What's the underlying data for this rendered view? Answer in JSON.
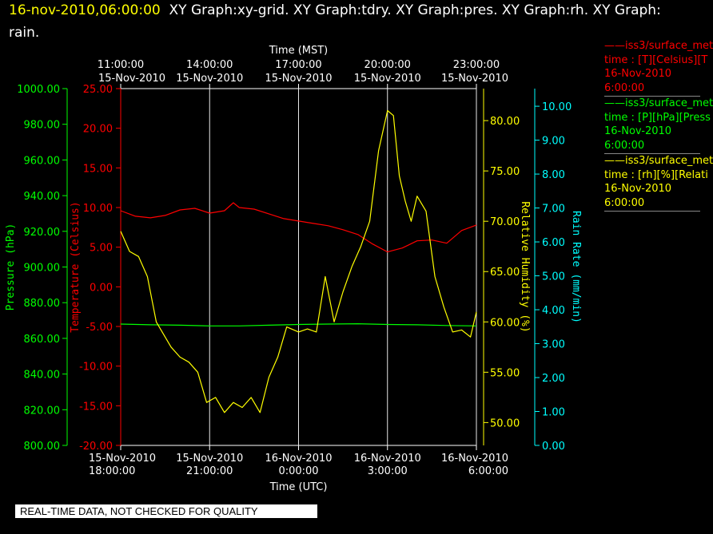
{
  "header": {
    "date": "16-nov-2010,06:00:00",
    "graphs_line1": "XY Graph:xy-grid.  XY Graph:tdry.  XY Graph:pres.  XY Graph:rh.  XY Graph:",
    "graphs_line2": "rain."
  },
  "notice": "REAL-TIME DATA, NOT CHECKED FOR QUALITY",
  "legend": [
    {
      "line1": "——iss3/surface_met",
      "line2": "time : [T][Celsius][T",
      "line3": "16-Nov-2010",
      "line4": "6:00:00",
      "color": "#ff0000"
    },
    {
      "line1": "——iss3/surface_met",
      "line2": "time : [P][hPa][Press",
      "line3": "16-Nov-2010",
      "line4": "6:00:00",
      "color": "#00ff00"
    },
    {
      "line1": "——iss3/surface_met",
      "line2": "time : [rh][%][Relati",
      "line3": "16-Nov-2010",
      "line4": "6:00:00",
      "color": "#ffff00"
    }
  ],
  "chart_data": {
    "type": "line",
    "x_top_label": "Time (MST)",
    "x_bottom_label": "Time (UTC)",
    "x_range_utc_hours": [
      18,
      30
    ],
    "top_ticks": [
      {
        "h": 18,
        "line1": "11:00:00",
        "line2": "15-Nov-2010"
      },
      {
        "h": 21,
        "line1": "14:00:00",
        "line2": "15-Nov-2010"
      },
      {
        "h": 24,
        "line1": "17:00:00",
        "line2": "15-Nov-2010"
      },
      {
        "h": 27,
        "line1": "20:00:00",
        "line2": "15-Nov-2010"
      },
      {
        "h": 30,
        "line1": "23:00:00",
        "line2": "15-Nov-2010"
      }
    ],
    "bottom_ticks": [
      {
        "h": 18,
        "line1": "15-Nov-2010",
        "line2": "18:00:00"
      },
      {
        "h": 21,
        "line1": "15-Nov-2010",
        "line2": "21:00:00"
      },
      {
        "h": 24,
        "line1": "16-Nov-2010",
        "line2": "0:00:00"
      },
      {
        "h": 27,
        "line1": "16-Nov-2010",
        "line2": "3:00:00"
      },
      {
        "h": 30,
        "line1": "16-Nov-2010",
        "line2": "6:00:00"
      }
    ],
    "axes": {
      "pressure": {
        "label": "Pressure (hPa)",
        "color": "#00ff00",
        "min": 800,
        "max": 1000,
        "ticks": [
          "800.00",
          "820.00",
          "840.00",
          "860.00",
          "880.00",
          "900.00",
          "920.00",
          "940.00",
          "960.00",
          "980.00",
          "1000.00"
        ]
      },
      "temperature": {
        "label": "Temperature (Celsius)",
        "color": "#ff0000",
        "min": -20,
        "max": 25,
        "ticks": [
          "-20.00",
          "-15.00",
          "-10.00",
          "-5.00",
          "0.00",
          "5.00",
          "10.00",
          "15.00",
          "20.00",
          "25.00"
        ]
      },
      "rh": {
        "label": "Relative Humidity (%)",
        "color": "#ffff00",
        "min": 47.73,
        "max": 83.18,
        "ticks": [
          "50.00",
          "55.00",
          "60.00",
          "65.00",
          "70.00",
          "75.00",
          "80.00"
        ]
      },
      "rain": {
        "label": "Rain Rate (mm/min)",
        "color": "#00ffff",
        "min": 0,
        "max": 10.52,
        "ticks": [
          "0.00",
          "1.00",
          "2.00",
          "3.00",
          "4.00",
          "5.00",
          "6.00",
          "7.00",
          "8.00",
          "9.00",
          "10.00"
        ]
      }
    },
    "series": [
      {
        "axis": "temperature",
        "color": "#ff0000",
        "x": [
          18.0,
          18.5,
          19.0,
          19.5,
          20.0,
          20.5,
          21.0,
          21.5,
          21.8,
          22.0,
          22.5,
          23.0,
          23.5,
          24.0,
          24.5,
          25.0,
          25.5,
          26.0,
          26.5,
          27.0,
          27.5,
          28.0,
          28.5,
          29.0,
          29.5,
          30.0
        ],
        "y": [
          9.6,
          8.9,
          8.7,
          9.0,
          9.7,
          9.9,
          9.3,
          9.6,
          10.6,
          10.0,
          9.8,
          9.2,
          8.6,
          8.3,
          8.0,
          7.7,
          7.2,
          6.6,
          5.4,
          4.4,
          4.9,
          5.8,
          5.9,
          5.5,
          7.1,
          7.8
        ]
      },
      {
        "axis": "pressure",
        "color": "#00ff00",
        "x": [
          18.0,
          19.0,
          20.0,
          21.0,
          22.0,
          23.0,
          24.0,
          25.0,
          26.0,
          27.0,
          28.0,
          29.0,
          30.0
        ],
        "y": [
          868.0,
          867.6,
          867.4,
          867.0,
          867.0,
          867.4,
          867.8,
          868.0,
          868.2,
          867.8,
          867.6,
          867.2,
          867.0
        ]
      },
      {
        "axis": "rh",
        "color": "#ffff00",
        "x": [
          18.0,
          18.3,
          18.6,
          18.9,
          19.2,
          19.5,
          19.7,
          20.0,
          20.3,
          20.6,
          20.9,
          21.2,
          21.5,
          21.8,
          22.1,
          22.4,
          22.7,
          23.0,
          23.3,
          23.6,
          24.0,
          24.3,
          24.6,
          24.9,
          25.2,
          25.4,
          25.5,
          25.8,
          26.1,
          26.4,
          26.7,
          27.0,
          27.2,
          27.4,
          27.6,
          27.8,
          28.0,
          28.3,
          28.6,
          28.9,
          29.2,
          29.5,
          29.8,
          30.0
        ],
        "y": [
          69.0,
          67.0,
          66.5,
          64.5,
          60.0,
          58.5,
          57.5,
          56.5,
          56.0,
          55.0,
          52.0,
          52.5,
          51.0,
          52.0,
          51.5,
          52.5,
          51.0,
          54.5,
          56.5,
          59.5,
          59.0,
          59.3,
          59.0,
          64.5,
          60.0,
          62.0,
          63.0,
          65.5,
          67.5,
          70.0,
          77.0,
          81.0,
          80.5,
          74.5,
          72.0,
          70.0,
          72.5,
          71.0,
          64.5,
          61.5,
          59.0,
          59.2,
          58.5,
          61.0
        ]
      }
    ]
  }
}
